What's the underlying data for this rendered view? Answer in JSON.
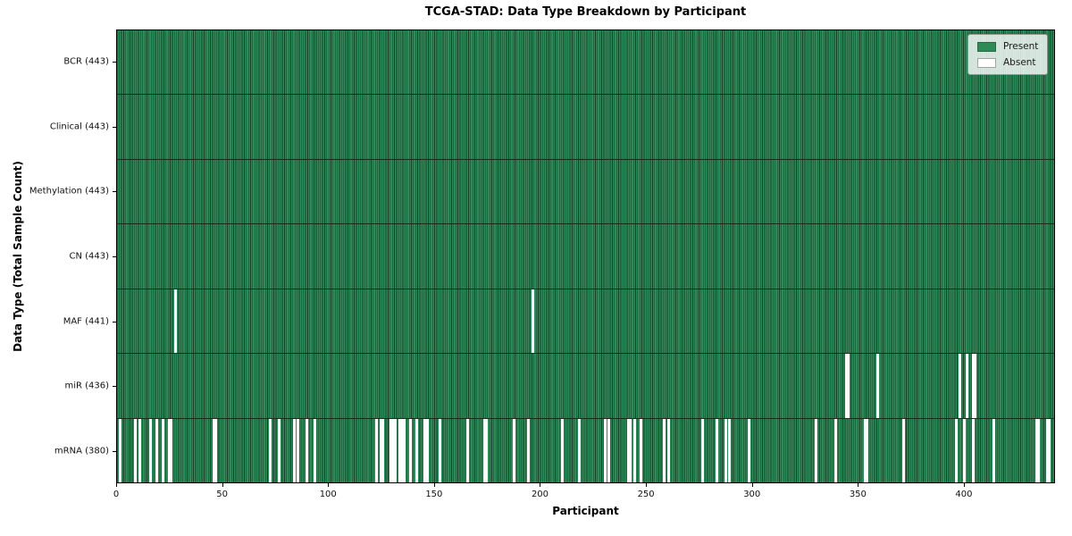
{
  "title": "TCGA-STAD: Data Type Breakdown by Participant",
  "chart_data": {
    "type": "heatmap",
    "title": "TCGA-STAD: Data Type Breakdown by Participant",
    "xlabel": "Participant",
    "ylabel": "Data Type (Total Sample Count)",
    "x_ticks": [
      0,
      50,
      100,
      150,
      200,
      250,
      300,
      350,
      400
    ],
    "x_range": [
      0,
      443
    ],
    "n_participants": 443,
    "grid": false,
    "legend_position": "upper right",
    "legend": [
      {
        "key": "present",
        "label": "Present",
        "color": "#2e8b57"
      },
      {
        "key": "absent",
        "label": "Absent",
        "color": "#ffffff"
      }
    ],
    "colors": {
      "present": "#2e8b57",
      "absent": "#ffffff",
      "cell_edge": "#12402a",
      "row_divider": "#10301d"
    },
    "rows": [
      {
        "key": "bcr",
        "data_type": "BCR",
        "label": "BCR (443)",
        "present_count": 443,
        "absent_count": 0,
        "absent_participants": []
      },
      {
        "key": "clinical",
        "data_type": "Clinical",
        "label": "Clinical (443)",
        "present_count": 443,
        "absent_count": 0,
        "absent_participants": []
      },
      {
        "key": "methylation",
        "data_type": "Methylation",
        "label": "Methylation (443)",
        "present_count": 443,
        "absent_count": 0,
        "absent_participants": []
      },
      {
        "key": "cn",
        "data_type": "CN",
        "label": "CN (443)",
        "present_count": 443,
        "absent_count": 0,
        "absent_participants": []
      },
      {
        "key": "maf",
        "data_type": "MAF",
        "label": "MAF (441)",
        "present_count": 441,
        "absent_count": 2,
        "absent_participants": [
          27,
          196
        ]
      },
      {
        "key": "mir",
        "data_type": "miR",
        "label": "miR (436)",
        "present_count": 436,
        "absent_count": 7,
        "absent_participants": [
          344,
          345,
          359,
          398,
          401,
          404,
          405
        ]
      },
      {
        "key": "mrna",
        "data_type": "mRNA",
        "label": "mRNA (380)",
        "present_count": 380,
        "absent_count": 63,
        "absent_participants": [
          1,
          8,
          10,
          15,
          18,
          21,
          24,
          25,
          45,
          46,
          72,
          76,
          83,
          85,
          89,
          93,
          122,
          124,
          125,
          129,
          130,
          131,
          133,
          134,
          135,
          138,
          141,
          145,
          146,
          152,
          165,
          173,
          174,
          187,
          194,
          210,
          218,
          230,
          232,
          241,
          242,
          244,
          247,
          258,
          260,
          276,
          283,
          287,
          289,
          298,
          330,
          339,
          353,
          354,
          371,
          396,
          400,
          404,
          414,
          434,
          435,
          439,
          440
        ]
      }
    ]
  }
}
